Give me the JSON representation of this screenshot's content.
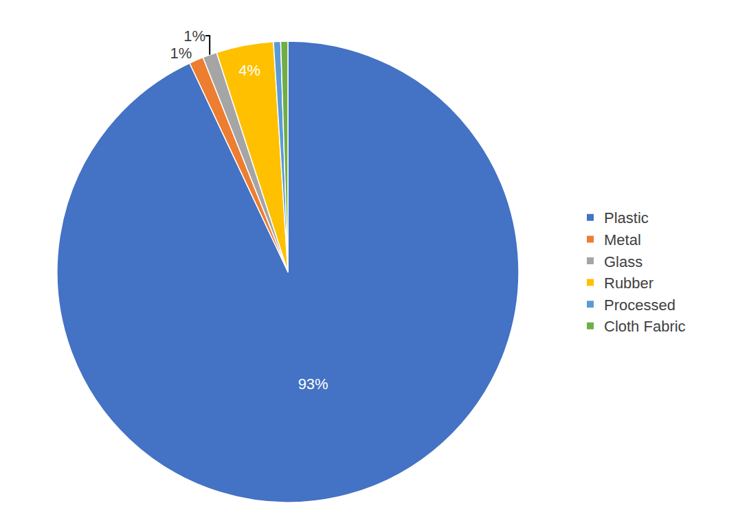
{
  "chart_data": {
    "type": "pie",
    "categories": [
      "Plastic",
      "Metal",
      "Glass",
      "Rubber",
      "Processed",
      "Cloth Fabric"
    ],
    "values": [
      93,
      1,
      1,
      4,
      0.5,
      0.5
    ],
    "value_labels": [
      "93%",
      "1%",
      "1%",
      "4%",
      null,
      null
    ],
    "colors": [
      "#4472c4",
      "#ed7d31",
      "#a5a5a5",
      "#ffc000",
      "#5b9bd5",
      "#70ad47"
    ],
    "data_labels": true,
    "legend": "right"
  }
}
